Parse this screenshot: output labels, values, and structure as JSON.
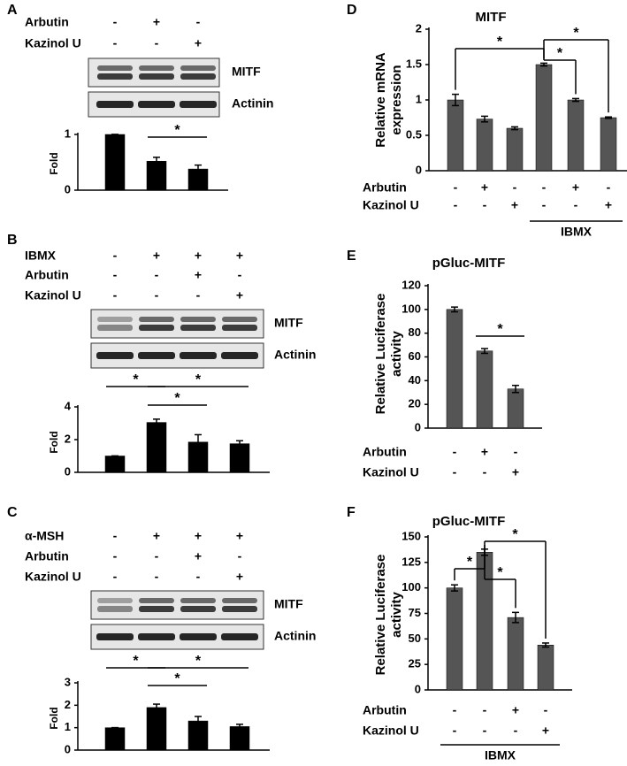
{
  "chart_data": [
    {
      "type": "bar",
      "panel": "A",
      "treatments": [
        {
          "name": "Arbutin",
          "signs": [
            "-",
            "+",
            "-"
          ]
        },
        {
          "name": "Kazinol U",
          "signs": [
            "-",
            "-",
            "+"
          ]
        }
      ],
      "blots": [
        "MITF",
        "Actinin"
      ],
      "ylabel": "Fold",
      "values": [
        1,
        0.52,
        0.38
      ],
      "errors": [
        0,
        0.07,
        0.07
      ],
      "ylim": [
        0,
        1
      ],
      "yticks": [
        0,
        1
      ],
      "color": "#000000",
      "significance": [
        {
          "from": 1,
          "to": 2,
          "label": "*"
        }
      ]
    },
    {
      "type": "bar",
      "panel": "B",
      "treatments": [
        {
          "name": "IBMX",
          "signs": [
            "-",
            "+",
            "+",
            "+"
          ]
        },
        {
          "name": "Arbutin",
          "signs": [
            "-",
            "-",
            "+",
            "-"
          ]
        },
        {
          "name": "Kazinol U",
          "signs": [
            "-",
            "-",
            "-",
            "+"
          ]
        }
      ],
      "blots": [
        "MITF",
        "Actinin"
      ],
      "ylabel": "Fold",
      "values": [
        1,
        3.05,
        1.85,
        1.75
      ],
      "errors": [
        0,
        0.2,
        0.45,
        0.18
      ],
      "ylim": [
        0,
        4
      ],
      "yticks": [
        0,
        2,
        4
      ],
      "color": "#000000",
      "significance": [
        {
          "from": 0,
          "to": 1,
          "label": "*"
        },
        {
          "from": 1,
          "to": 3,
          "label": "*"
        },
        {
          "from": 1,
          "to": 2,
          "label": "*"
        }
      ]
    },
    {
      "type": "bar",
      "panel": "C",
      "treatments": [
        {
          "name": "α-MSH",
          "signs": [
            "-",
            "+",
            "+",
            "+"
          ]
        },
        {
          "name": "Arbutin",
          "signs": [
            "-",
            "-",
            "+",
            "-"
          ]
        },
        {
          "name": "Kazinol U",
          "signs": [
            "-",
            "-",
            "-",
            "+"
          ]
        }
      ],
      "blots": [
        "MITF",
        "Actinin"
      ],
      "ylabel": "Fold",
      "values": [
        1,
        1.9,
        1.3,
        1.05
      ],
      "errors": [
        0,
        0.15,
        0.2,
        0.1
      ],
      "ylim": [
        0,
        3
      ],
      "yticks": [
        0,
        1,
        2,
        3
      ],
      "color": "#000000",
      "significance": [
        {
          "from": 0,
          "to": 1,
          "label": "*"
        },
        {
          "from": 1,
          "to": 3,
          "label": "*"
        },
        {
          "from": 1,
          "to": 2,
          "label": "*"
        }
      ]
    },
    {
      "type": "bar",
      "panel": "D",
      "title": "MITF",
      "treatments": [
        {
          "name": "Arbutin",
          "signs": [
            "-",
            "+",
            "-",
            "-",
            "+",
            "-"
          ]
        },
        {
          "name": "Kazinol U",
          "signs": [
            "-",
            "-",
            "+",
            "-",
            "-",
            "+"
          ]
        }
      ],
      "group": {
        "label": "IBMX",
        "from": 3,
        "to": 5
      },
      "ylabel": [
        "Relative mRNA",
        "expression"
      ],
      "values": [
        1.0,
        0.73,
        0.6,
        1.5,
        1.0,
        0.75
      ],
      "errors": [
        0.08,
        0.04,
        0.02,
        0.02,
        0.02,
        0.01
      ],
      "ylim": [
        0,
        2
      ],
      "yticks": [
        0,
        0.5,
        1,
        1.5,
        2
      ],
      "color": "#555555",
      "significance": [
        {
          "from": 0,
          "to": 3,
          "label": "*"
        },
        {
          "from": 3,
          "to": 4,
          "label": "*"
        },
        {
          "from": 3,
          "to": 5,
          "label": "*"
        }
      ]
    },
    {
      "type": "bar",
      "panel": "E",
      "title": "pGluc-MITF",
      "treatments": [
        {
          "name": "Arbutin",
          "signs": [
            "-",
            "+",
            "-"
          ]
        },
        {
          "name": "Kazinol U",
          "signs": [
            "-",
            "-",
            "+"
          ]
        }
      ],
      "ylabel": [
        "Relative Luciferase",
        "activity"
      ],
      "values": [
        100,
        65,
        33
      ],
      "errors": [
        2,
        2,
        3
      ],
      "ylim": [
        0,
        120
      ],
      "yticks": [
        0,
        20,
        40,
        60,
        80,
        100,
        120
      ],
      "color": "#555555",
      "significance": [
        {
          "from": 1,
          "to": 2,
          "label": "*"
        }
      ]
    },
    {
      "type": "bar",
      "panel": "F",
      "title": "pGluc-MITF",
      "treatments": [
        {
          "name": "Arbutin",
          "signs": [
            "-",
            "-",
            "+",
            "-"
          ]
        },
        {
          "name": "Kazinol U",
          "signs": [
            "-",
            "-",
            "-",
            "+"
          ]
        }
      ],
      "group": {
        "label": "IBMX",
        "from": 0,
        "to": 3
      },
      "ylabel": [
        "Relative Luciferase",
        "activity"
      ],
      "values": [
        100,
        135,
        71,
        44
      ],
      "errors": [
        3,
        3,
        5,
        2
      ],
      "ylim": [
        0,
        150
      ],
      "yticks": [
        0,
        25,
        50,
        75,
        100,
        125,
        150
      ],
      "color": "#555555",
      "significance": [
        {
          "from": 0,
          "to": 1,
          "label": "*"
        },
        {
          "from": 1,
          "to": 2,
          "label": "*"
        },
        {
          "from": 1,
          "to": 3,
          "label": "*"
        }
      ]
    }
  ]
}
